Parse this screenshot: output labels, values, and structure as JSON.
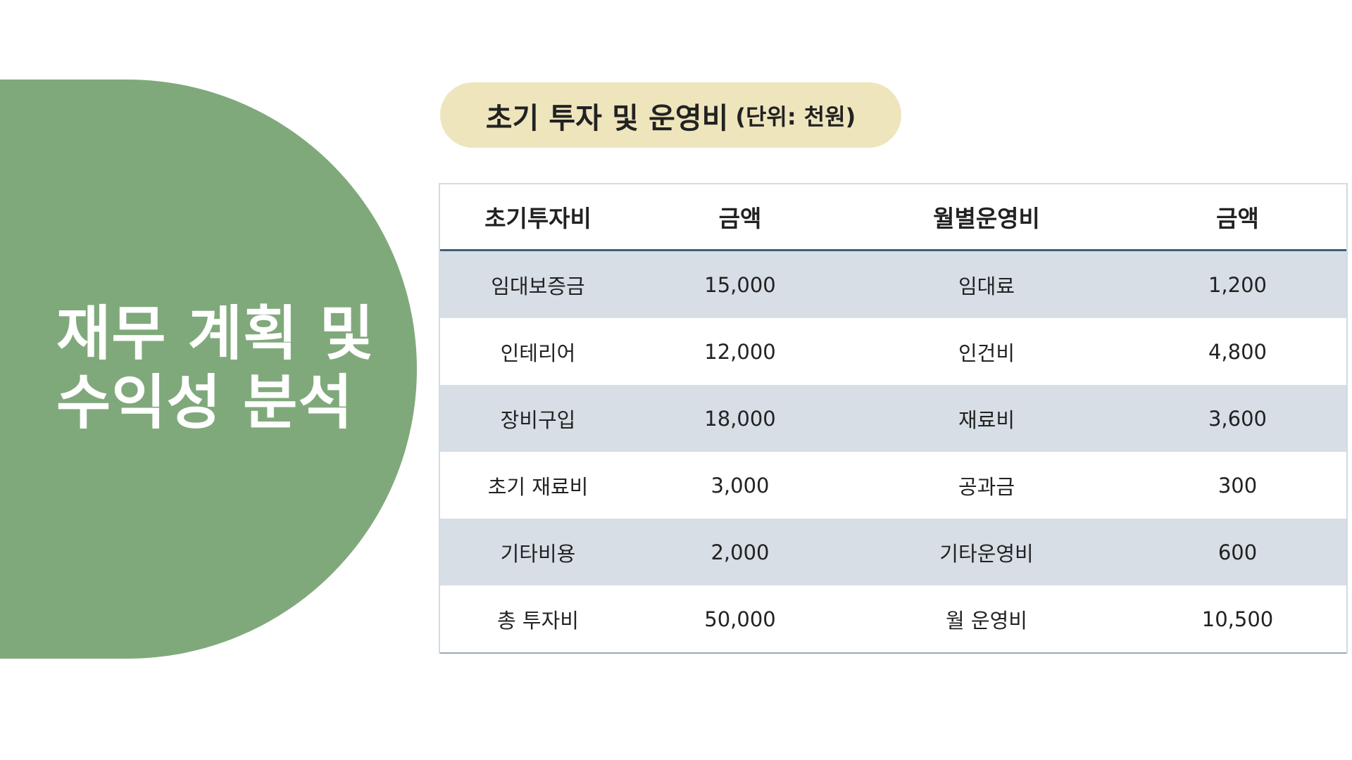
{
  "title": "재무 계획 및\n수익성 분석",
  "subtitle": {
    "main": "초기 투자 및 운영비",
    "unit": "(단위: 천원)"
  },
  "colors": {
    "title_shape": "#80a97b",
    "pill": "#efe5bd",
    "row_shade": "#d7dee6",
    "header_rule": "#3e5f7a"
  },
  "table": {
    "headers": [
      "초기투자비",
      "금액",
      "월별운영비",
      "금액"
    ],
    "rows": [
      [
        "임대보증금",
        "15,000",
        "임대료",
        "1,200"
      ],
      [
        "인테리어",
        "12,000",
        "인건비",
        "4,800"
      ],
      [
        "장비구입",
        "18,000",
        "재료비",
        "3,600"
      ],
      [
        "초기 재료비",
        "3,000",
        "공과금",
        "300"
      ],
      [
        "기타비용",
        "2,000",
        "기타운영비",
        "600"
      ],
      [
        "총 투자비",
        "50,000",
        "월 운영비",
        "10,500"
      ]
    ]
  }
}
